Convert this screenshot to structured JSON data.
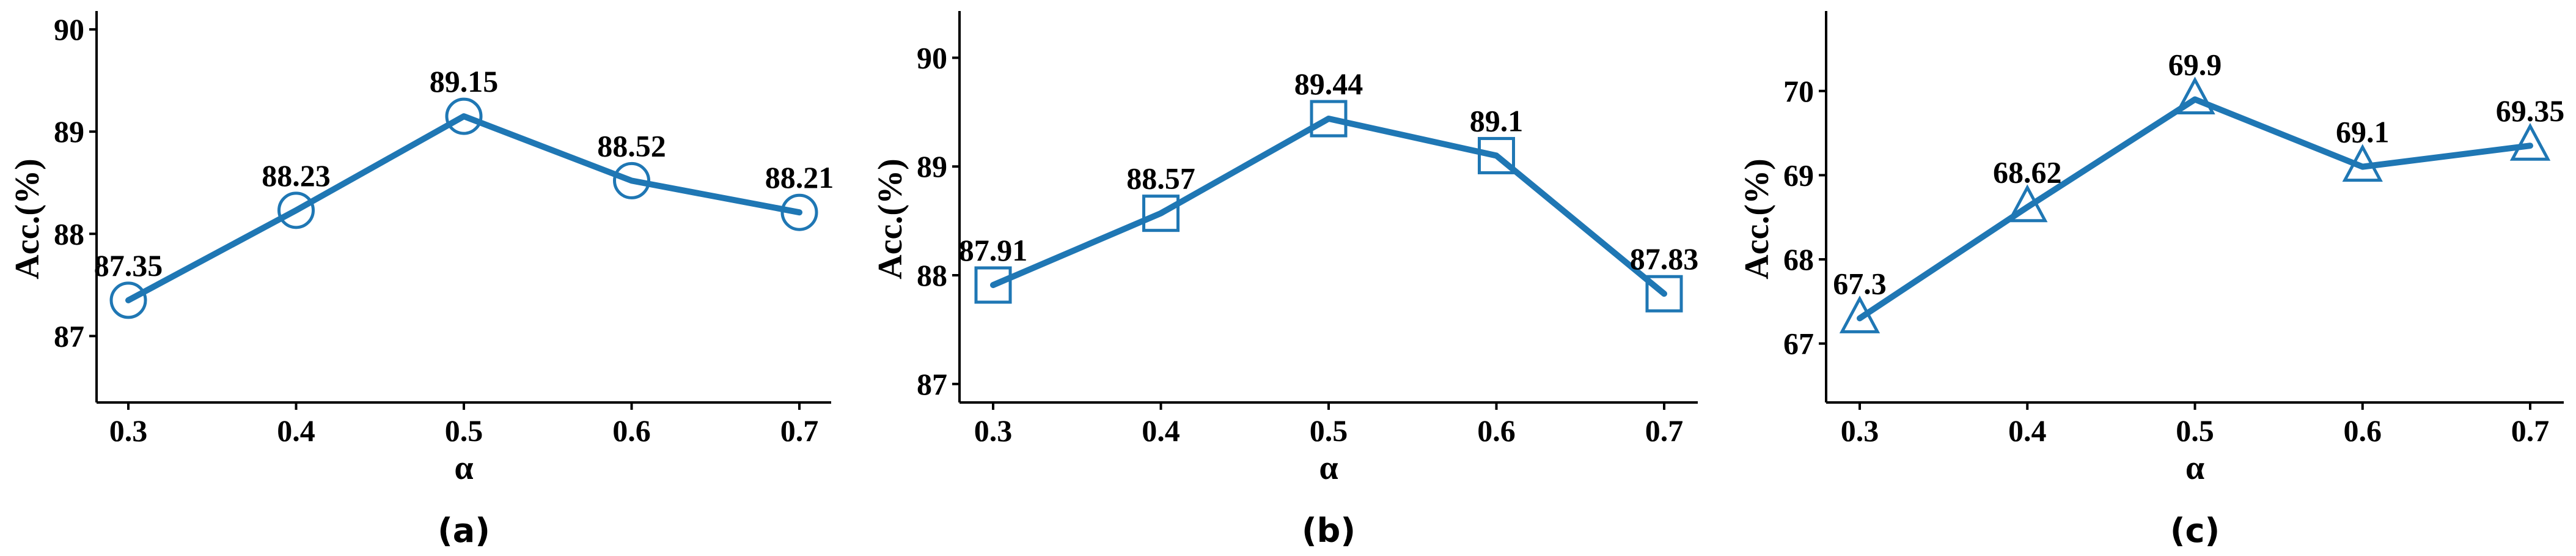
{
  "style": {
    "line_color": "#1f77b4",
    "axis_color": "#000000",
    "background": "#ffffff"
  },
  "chart_data": [
    {
      "panel": "(a)",
      "type": "line",
      "marker": "circle",
      "xlabel": "α",
      "ylabel": "Acc.(%)",
      "categories": [
        "0.3",
        "0.4",
        "0.5",
        "0.6",
        "0.7"
      ],
      "values": [
        87.35,
        88.23,
        89.15,
        88.52,
        88.21
      ],
      "data_labels": [
        "87.35",
        "88.23",
        "89.15",
        "88.52",
        "88.21"
      ],
      "yticks": [
        "87",
        "88",
        "89",
        "90"
      ],
      "ylim": [
        86.35,
        90.18
      ],
      "grid": false,
      "legend": "none"
    },
    {
      "panel": "(b)",
      "type": "line",
      "marker": "square",
      "xlabel": "α",
      "ylabel": "Acc.(%)",
      "categories": [
        "0.3",
        "0.4",
        "0.5",
        "0.6",
        "0.7"
      ],
      "values": [
        87.91,
        88.57,
        89.44,
        89.1,
        87.83
      ],
      "data_labels": [
        "87.91",
        "88.57",
        "89.44",
        "89.1",
        "87.83"
      ],
      "yticks": [
        "87",
        "88",
        "89",
        "90"
      ],
      "ylim": [
        86.83,
        90.43
      ],
      "grid": false,
      "legend": "none"
    },
    {
      "panel": "(c)",
      "type": "line",
      "marker": "triangle",
      "xlabel": "α",
      "ylabel": "Acc.(%)",
      "categories": [
        "0.3",
        "0.4",
        "0.5",
        "0.6",
        "0.7"
      ],
      "values": [
        67.3,
        68.62,
        69.9,
        69.1,
        69.35
      ],
      "data_labels": [
        "67.3",
        "68.62",
        "69.9",
        "69.1",
        "69.35"
      ],
      "yticks": [
        "67",
        "68",
        "69",
        "70"
      ],
      "ylim": [
        66.3,
        70.95
      ],
      "grid": false,
      "legend": "none"
    }
  ]
}
